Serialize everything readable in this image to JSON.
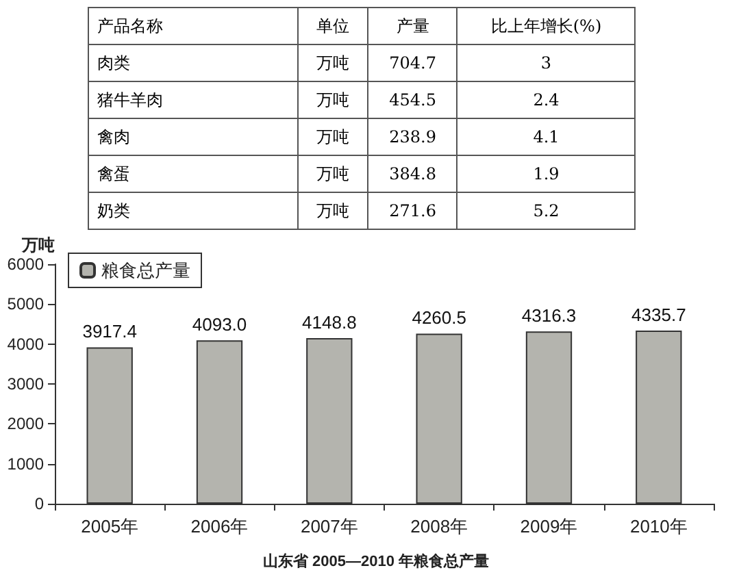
{
  "chart_data": [
    {
      "type": "other",
      "annotations": [
        "产品名称",
        "单位",
        "产量",
        "比上年增长(%)",
        "肉类",
        "万吨",
        "704.7",
        "3",
        "猪牛羊肉",
        "万吨",
        "454.5",
        "2.4",
        "禽肉",
        "万吨",
        "238.9",
        "4.1",
        "禽蛋",
        "万吨",
        "384.8",
        "1.9",
        "奶类",
        "万吨",
        "271.6",
        "5.2"
      ]
    },
    {
      "type": "bar",
      "title": "山东省 2005—2010 年粮食总产量",
      "ylabel": "万吨",
      "categories": [
        "2005年",
        "2006年",
        "2007年",
        "2008年",
        "2009年",
        "2010年"
      ],
      "series": [
        {
          "name": "粮食总产量",
          "color": "#b4b4ae",
          "values": [
            3917.4,
            4093.0,
            4148.8,
            4260.5,
            4316.3,
            4335.7
          ],
          "value_labels": [
            "3917.4",
            "4093.0",
            "4148.8",
            "4260.5",
            "4316.3",
            "4335.7"
          ]
        }
      ],
      "ylim": [
        0,
        6000
      ],
      "yticks": [
        0,
        1000,
        2000,
        3000,
        4000,
        5000,
        6000
      ],
      "legend": "top left",
      "grid": false
    }
  ]
}
